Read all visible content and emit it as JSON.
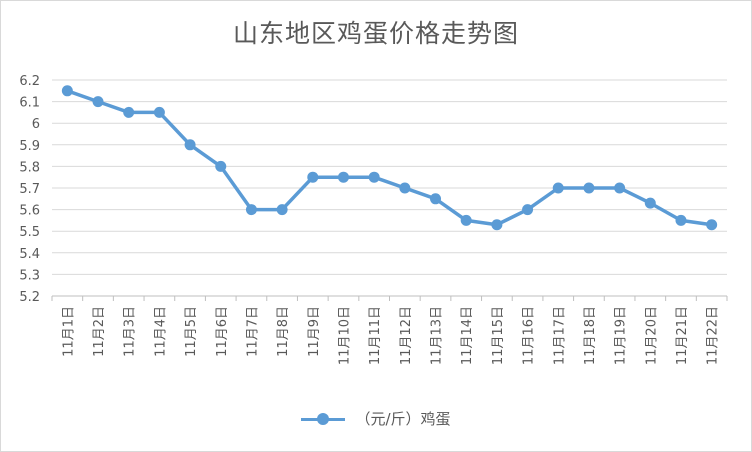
{
  "chart_data": {
    "type": "line",
    "title": "山东地区鸡蛋价格走势图",
    "categories": [
      "11月1日",
      "11月2日",
      "11月3日",
      "11月4日",
      "11月5日",
      "11月6日",
      "11月7日",
      "11月8日",
      "11月9日",
      "11月10日",
      "11月11日",
      "11月12日",
      "11月13日",
      "11月14日",
      "11月15日",
      "11月16日",
      "11月17日",
      "11月18日",
      "11月19日",
      "11月20日",
      "11月21日",
      "11月22日"
    ],
    "series": [
      {
        "name": "（元/斤）鸡蛋",
        "values": [
          6.15,
          6.1,
          6.05,
          6.05,
          5.9,
          5.8,
          5.6,
          5.6,
          5.75,
          5.75,
          5.75,
          5.7,
          5.65,
          5.55,
          5.53,
          5.6,
          5.7,
          5.7,
          5.7,
          5.63,
          5.55,
          5.53
        ]
      }
    ],
    "yticks": [
      "5.2",
      "5.3",
      "5.4",
      "5.5",
      "5.6",
      "5.7",
      "5.8",
      "5.9",
      "6",
      "6.1",
      "6.2"
    ],
    "ylim": [
      5.2,
      6.2
    ],
    "grid": true,
    "legend": "bottom",
    "color": "#5b9bd5"
  }
}
